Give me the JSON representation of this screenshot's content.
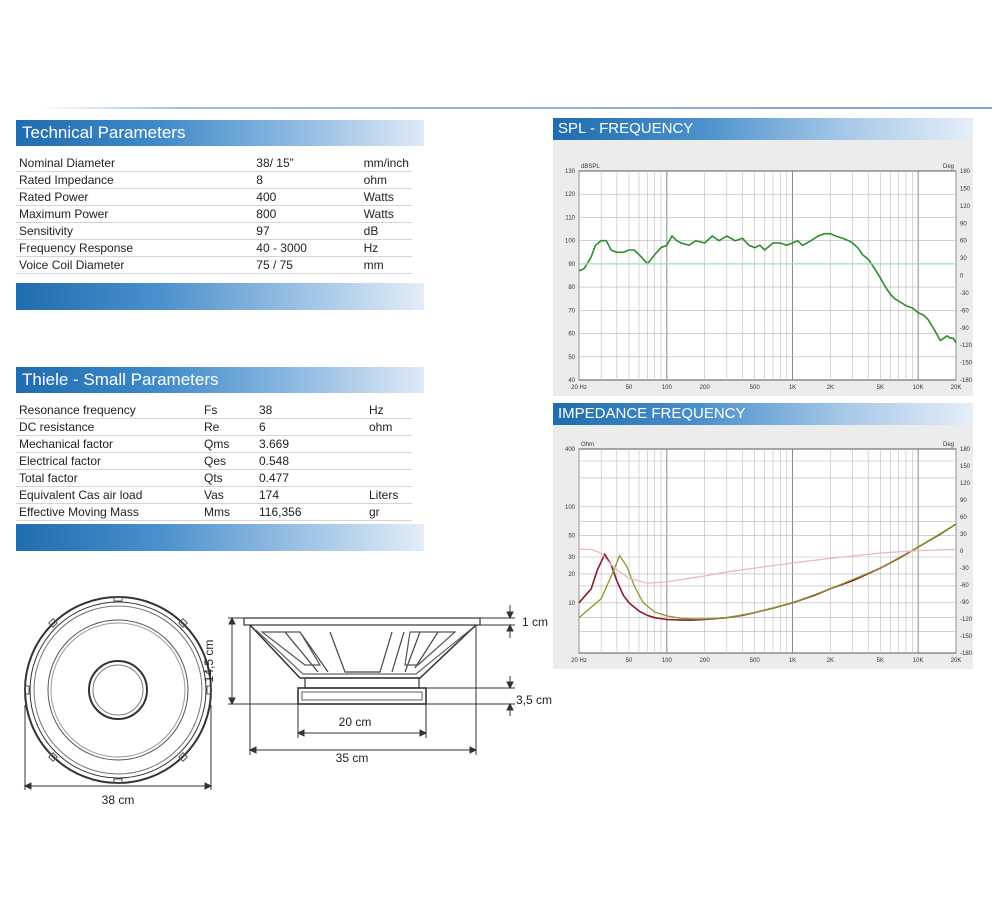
{
  "technical": {
    "title": "Technical Parameters",
    "rows": [
      {
        "label": "Nominal Diameter",
        "value": "38/ 15”",
        "unit": "mm/inch"
      },
      {
        "label": "Rated Impedance",
        "value": "8",
        "unit": "ohm"
      },
      {
        "label": "Rated Power",
        "value": "400",
        "unit": "Watts"
      },
      {
        "label": "Maximum Power",
        "value": "800",
        "unit": "Watts"
      },
      {
        "label": "Sensitivity",
        "value": "97",
        "unit": "dB"
      },
      {
        "label": "Frequency Response",
        "value": "40 - 3000",
        "unit": "Hz"
      },
      {
        "label": "Voice Coil Diameter",
        "value": "75 / 75",
        "unit": "mm"
      }
    ]
  },
  "thiele": {
    "title": "Thiele - Small Parameters",
    "rows": [
      {
        "label": "Resonance frequency",
        "symbol": "Fs",
        "value": "38",
        "unit": "Hz"
      },
      {
        "label": "DC resistance",
        "symbol": "Re",
        "value": "6",
        "unit": "ohm"
      },
      {
        "label": "Mechanical factor",
        "symbol": "Qms",
        "value": "3.669",
        "unit": ""
      },
      {
        "label": "Electrical factor",
        "symbol": "Qes",
        "value": "0.548",
        "unit": ""
      },
      {
        "label": "Total factor",
        "symbol": "Qts",
        "value": "0.477",
        "unit": ""
      },
      {
        "label": "Equivalent Cas air load",
        "symbol": "Vas",
        "value": "174",
        "unit": "Liters"
      },
      {
        "label": "Effective Moving Mass",
        "symbol": "Mms",
        "value": "116,356",
        "unit": "gr"
      }
    ]
  },
  "drawing": {
    "front_diameter": "38 cm",
    "side_height": "14,5 cm",
    "flange": "1 cm",
    "magnet_height": "3,5 cm",
    "magnet_diameter": "20 cm",
    "frame_depth": "35 cm"
  },
  "chart_data": [
    {
      "type": "line",
      "title": "SPL - FREQUENCY",
      "ylabel": "dBSPL",
      "y2label": "Deg",
      "x_scale": "log",
      "xlim": [
        20,
        20000
      ],
      "ylim": [
        40,
        130
      ],
      "y2lim": [
        -180,
        180
      ],
      "grid": true,
      "x_ticks": [
        "20 Hz",
        "50",
        "100",
        "200",
        "500",
        "1K",
        "2K",
        "5K",
        "10K",
        "20K"
      ],
      "y_ticks": [
        "130",
        "120",
        "110",
        "100",
        "90",
        "80",
        "70",
        "60",
        "50",
        "40"
      ],
      "y2_ticks": [
        "180",
        "150",
        "120",
        "90",
        "60",
        "30",
        "0",
        "-30",
        "-60",
        "-90",
        "-120",
        "-150",
        "-180"
      ],
      "series": [
        {
          "color": "#2e8b2e",
          "x": [
            20,
            22,
            25,
            27,
            30,
            33,
            36,
            40,
            45,
            50,
            55,
            60,
            65,
            70,
            75,
            80,
            90,
            100,
            110,
            120,
            130,
            150,
            170,
            200,
            230,
            260,
            300,
            350,
            400,
            450,
            500,
            550,
            600,
            700,
            800,
            900,
            1000,
            1100,
            1200,
            1400,
            1600,
            1800,
            2000,
            2200,
            2500,
            2800,
            3000,
            3300,
            3600,
            4000,
            4500,
            5000,
            5500,
            6000,
            6500,
            7000,
            8000,
            9000,
            10000,
            11000,
            12000,
            13000,
            14000,
            15000,
            16000,
            17000,
            18000,
            19000,
            20000
          ],
          "y": [
            87,
            88,
            93,
            98,
            100,
            100,
            96,
            95,
            95,
            96,
            96,
            94,
            92,
            90,
            92,
            94,
            97,
            98,
            102,
            100,
            99,
            98,
            100,
            99,
            102,
            100,
            102,
            100,
            101,
            98,
            97,
            98,
            96,
            99,
            99,
            98,
            99,
            100,
            98,
            100,
            102,
            103,
            103,
            102,
            101,
            100,
            99,
            97,
            94,
            92,
            88,
            84,
            80,
            77,
            75,
            74,
            72,
            71,
            69,
            68,
            66,
            63,
            60,
            57,
            58,
            59,
            58,
            58,
            56
          ]
        },
        {
          "color": "#a7d7c7",
          "x": [
            20,
            20000
          ],
          "y": [
            90,
            90
          ]
        }
      ]
    },
    {
      "type": "line",
      "title": "IMPEDANCE FREQUENCY",
      "ylabel": "Ohm",
      "y2label": "Deg",
      "x_scale": "log",
      "xlim": [
        20,
        20000
      ],
      "ylim": [
        3,
        400
      ],
      "y2lim": [
        -180,
        180
      ],
      "grid": true,
      "x_ticks": [
        "20 Hz",
        "50",
        "100",
        "200",
        "500",
        "1K",
        "2K",
        "5K",
        "10K",
        "20K"
      ],
      "y_ticks": [
        "400",
        "100",
        "50",
        "30",
        "20",
        "10"
      ],
      "y2_ticks": [
        "180",
        "150",
        "120",
        "90",
        "60",
        "30",
        "0",
        "-30",
        "-60",
        "-90",
        "-120",
        "-150",
        "-180"
      ],
      "series": [
        {
          "color": "#8b1a2e",
          "x": [
            20,
            25,
            28,
            32,
            36,
            40,
            45,
            50,
            60,
            70,
            80,
            100,
            130,
            160,
            200,
            300,
            400,
            500,
            700,
            1000,
            1500,
            2000,
            3000,
            5000,
            7000,
            10000,
            15000,
            20000
          ],
          "y": [
            10,
            14,
            22,
            32,
            25,
            17,
            12,
            10,
            8.2,
            7.4,
            7.0,
            6.7,
            6.6,
            6.6,
            6.7,
            7.0,
            7.4,
            7.9,
            8.8,
            10,
            12,
            14,
            17,
            23,
            29,
            38,
            52,
            66
          ]
        },
        {
          "color": "#8a9a2a",
          "x": [
            20,
            30,
            38,
            42,
            48,
            55,
            65,
            80,
            100,
            130,
            160,
            200,
            300,
            500,
            1000,
            2000,
            5000,
            10000,
            20000
          ],
          "y": [
            7,
            11,
            22,
            31,
            24,
            15,
            10,
            8,
            7.3,
            6.9,
            6.8,
            6.8,
            7.0,
            7.9,
            10,
            14,
            23,
            38,
            66
          ]
        },
        {
          "color": "#e8b8bc",
          "x": [
            20,
            25,
            30,
            35,
            40,
            50,
            70,
            100,
            150,
            200,
            300,
            500,
            1000,
            2000,
            5000,
            10000,
            20000
          ],
          "y": [
            36,
            36,
            33,
            26,
            22,
            18,
            16,
            16.5,
            18,
            19,
            21,
            23,
            26,
            29,
            33,
            35,
            36
          ]
        }
      ]
    }
  ]
}
